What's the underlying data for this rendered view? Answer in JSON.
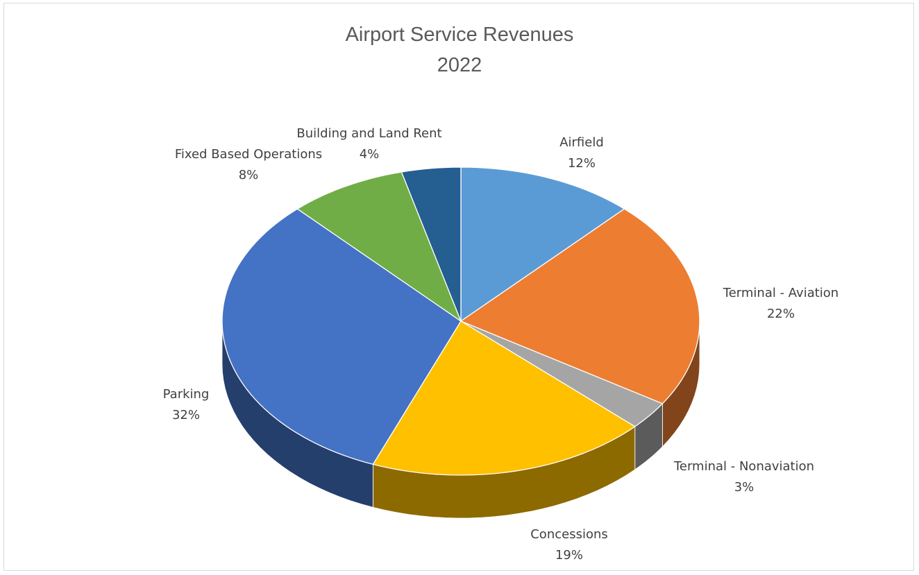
{
  "chart_data": {
    "type": "pie",
    "title": "Airport Service Revenues",
    "subtitle": "2022",
    "three_d": true,
    "start_angle_deg": 0,
    "direction": "clockwise",
    "slices": [
      {
        "label": "Airfield",
        "percent_label": "12%",
        "value": 12,
        "color": "#5B9BD5"
      },
      {
        "label": "Terminal - Aviation",
        "percent_label": "22%",
        "value": 22,
        "color": "#ED7D31"
      },
      {
        "label": "Terminal - Nonaviation",
        "percent_label": "3%",
        "value": 3,
        "color": "#A5A5A5"
      },
      {
        "label": "Concessions",
        "percent_label": "19%",
        "value": 19,
        "color": "#FFC000"
      },
      {
        "label": "Parking",
        "percent_label": "32%",
        "value": 32,
        "color": "#4472C4"
      },
      {
        "label": "Fixed Based Operations",
        "percent_label": "8%",
        "value": 8,
        "color": "#70AD47"
      },
      {
        "label": "Building and Land Rent",
        "percent_label": "4%",
        "value": 4,
        "color": "#255E91"
      }
    ]
  }
}
